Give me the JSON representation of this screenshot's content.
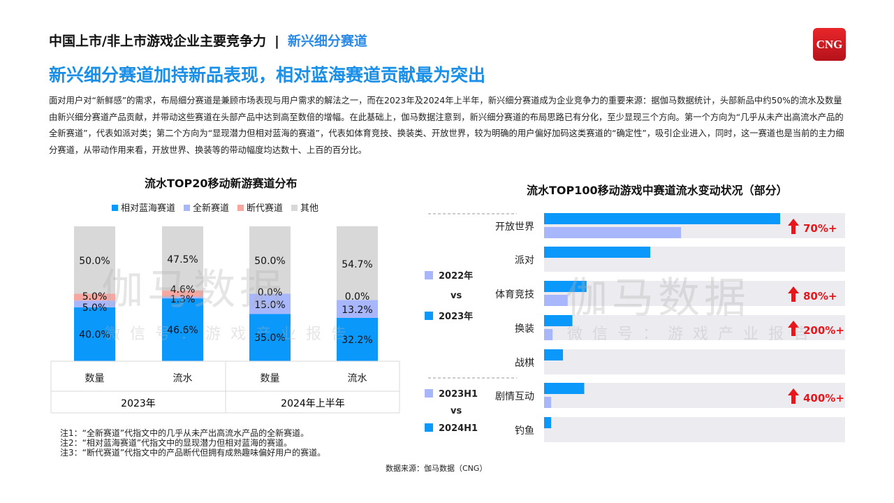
{
  "header": {
    "section": "中国上市/非上市游戏企业主要竞争力",
    "separator": "|",
    "subsection": "新兴细分赛道"
  },
  "title": "新兴细分赛道加持新品表现，相对蓝海赛道贡献最为突出",
  "logo": "CNG",
  "paragraph": "面对用户对“新鲜感”的需求，布局细分赛道是兼顾市场表现与用户需求的解法之一，而在2023年及2024年上半年，新兴细分赛道成为企业竞争力的重要来源：据伽马数据统计，头部新品中约50%的流水及数量由新兴细分赛道产品贡献，并带动这些赛道在头部产品中达到高至数倍的增幅。在此基础上，伽马数据注意到，新兴细分赛道的布局思路已有分化，至少显现三个方向。第一个方向为“几乎从未产出高流水产品的全新赛道”，代表如派对类；第二个方向为“显现潜力但相对蓝海的赛道”，代表如体育竞技、换装类、开放世界，较为明确的用户偏好加码这类赛道的“确定性”，吸引企业进入，同时，这一赛道也是当前的主力细分赛道，从带动作用来看，开放世界、换装等的带动幅度均达数十、上百的百分比。",
  "watermark": {
    "main": "伽马数据",
    "sub": "微信号：游戏产业报告"
  },
  "chart_data": [
    {
      "type": "bar",
      "stacked": true,
      "title": "流水TOP20移动新游赛道分布",
      "categories": [
        "数量",
        "流水",
        "数量",
        "流水"
      ],
      "groups": [
        "2023年",
        "2023年",
        "2024年上半年",
        "2024年上半年"
      ],
      "group_labels": [
        "2023年",
        "2024年上半年"
      ],
      "legend_position": "top",
      "ylim": [
        0,
        100
      ],
      "series": [
        {
          "name": "相对蓝海赛道",
          "color": "#0a98fb",
          "values": [
            40.0,
            46.6,
            35.0,
            32.2
          ],
          "labels": [
            "40.0%",
            "46.6%",
            "35.0%",
            "32.2%"
          ]
        },
        {
          "name": "全新赛道",
          "color": "#a8b6fb",
          "values": [
            5.0,
            1.3,
            15.0,
            13.2
          ],
          "labels": [
            "5.0%",
            "1.3%",
            "15.0%",
            "13.2%"
          ]
        },
        {
          "name": "断代赛道",
          "color": "#f5a7a0",
          "values": [
            5.0,
            4.6,
            0.0,
            0.0
          ],
          "labels": [
            "5.0%",
            "4.6%",
            "0.0%",
            "0.0%"
          ]
        },
        {
          "name": "其他",
          "color": "#d8d8d8",
          "values": [
            50.0,
            47.5,
            50.0,
            54.7
          ],
          "labels": [
            "50.0%",
            "47.5%",
            "50.0%",
            "54.7%"
          ]
        }
      ]
    },
    {
      "type": "bar",
      "orientation": "horizontal",
      "title": "流水TOP100移动游戏中赛道流水变动状况（部分）",
      "value_axis_shown": false,
      "note": "bar values are relative lengths (largest = 100); no axis is printed",
      "legend_groups": [
        {
          "older": "2022年",
          "vs": "vs",
          "newer": "2023年"
        },
        {
          "older": "2023H1",
          "vs": "vs",
          "newer": "2024H1"
        }
      ],
      "colors": {
        "newer": "#0a98fb",
        "older": "#a8b6fb",
        "band": "#ececf0",
        "growth": "#e8161b"
      },
      "categories": [
        "开放世界",
        "派对",
        "体育竞技",
        "换装",
        "战棋",
        "剧情互动",
        "钓鱼"
      ],
      "period_group": [
        0,
        0,
        0,
        0,
        0,
        1,
        1
      ],
      "series": [
        {
          "role": "newer",
          "values": [
            100,
            45,
            18,
            12,
            8,
            17,
            3
          ]
        },
        {
          "role": "older",
          "values": [
            58,
            0,
            10,
            3.6,
            0,
            3,
            0
          ]
        }
      ],
      "growth": [
        "70%+",
        "",
        "80%+",
        "200%+",
        "",
        "400%+",
        ""
      ]
    }
  ],
  "notes": [
    "注1：“全新赛道”代指文中的几乎从未产出高流水产品的全新赛道。",
    "注2：“相对蓝海赛道”代指文中的显现潜力但相对蓝海的赛道。",
    "注3：“断代赛道”代指文中的产品断代但拥有成熟趣味偏好用户的赛道。"
  ],
  "source": "数据来源：伽马数据（CNG）"
}
